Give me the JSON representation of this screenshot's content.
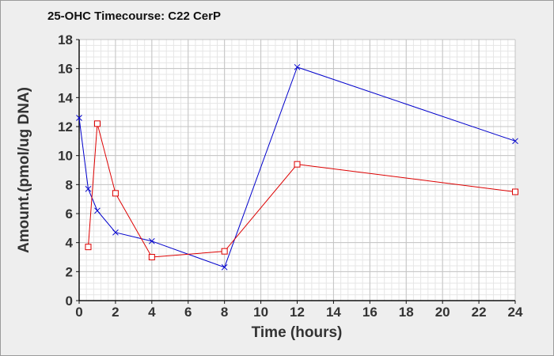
{
  "chart_data": {
    "type": "line",
    "title": "25-OHC Timecourse: C22 CerP",
    "xlabel": "Time (hours)",
    "ylabel": "Amount.(pmol/ug DNA)",
    "xlim": [
      0,
      24
    ],
    "ylim": [
      0,
      18
    ],
    "xticks": [
      0,
      2,
      4,
      6,
      8,
      10,
      12,
      14,
      16,
      18,
      20,
      22,
      24
    ],
    "yticks": [
      0,
      2,
      4,
      6,
      8,
      10,
      12,
      14,
      16,
      18
    ],
    "grid": true,
    "legend": "none",
    "series": [
      {
        "color": "#0000cc",
        "marker": "x",
        "x": [
          0,
          0.5,
          1,
          2,
          4,
          8,
          12,
          24
        ],
        "y": [
          12.6,
          7.7,
          6.2,
          4.7,
          4.1,
          2.3,
          16.1,
          11.0
        ]
      },
      {
        "color": "#dd0000",
        "marker": "square",
        "x": [
          0.5,
          1,
          2,
          4,
          8,
          12,
          24
        ],
        "y": [
          3.7,
          12.2,
          7.4,
          3.0,
          3.4,
          9.4,
          7.5
        ]
      }
    ]
  }
}
